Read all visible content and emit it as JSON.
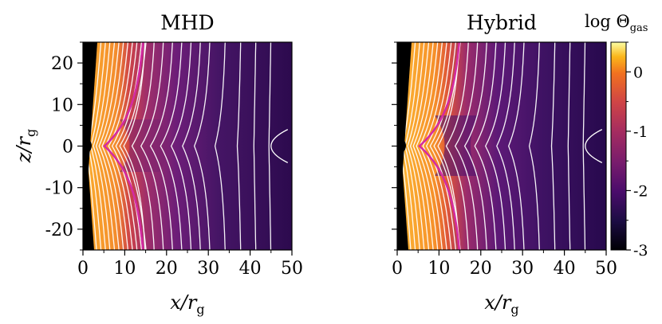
{
  "chart_data": [
    {
      "type": "heatmap",
      "title": "MHD",
      "xlabel": "x/r_g",
      "ylabel": "z/r_g",
      "xlim": [
        0,
        50
      ],
      "ylim": [
        -25,
        25
      ],
      "xticks": [
        "0",
        "10",
        "20",
        "30",
        "40",
        "50"
      ],
      "yticks": [
        "20",
        "10",
        "0",
        "-10",
        "-20"
      ],
      "field": "log Θ_gas",
      "funnel_edge_x": 13.5,
      "contours": "white magnetic field lines, magenta boundary at x ≈ 13.5 r_g"
    },
    {
      "type": "heatmap",
      "title": "Hybrid",
      "xlabel": "x/r_g",
      "ylabel": "",
      "xlim": [
        0,
        50
      ],
      "ylim": [
        -25,
        25
      ],
      "xticks": [
        "0",
        "10",
        "20",
        "30",
        "40",
        "50"
      ],
      "yticks": [],
      "field": "log Θ_gas",
      "funnel_edge_x": 14,
      "contours": "white magnetic field lines, magenta boundary at x ≈ 14 r_g"
    }
  ],
  "colorbar": {
    "label": "log Θ",
    "label_sub": "gas",
    "range": [
      -3,
      0.5
    ],
    "ticks": [
      "0",
      "-1",
      "-2",
      "-3"
    ],
    "colormap": "inferno"
  },
  "labels": {
    "x_main": "x/r",
    "x_sub": "g",
    "y_main": "z/r",
    "y_sub": "g"
  }
}
